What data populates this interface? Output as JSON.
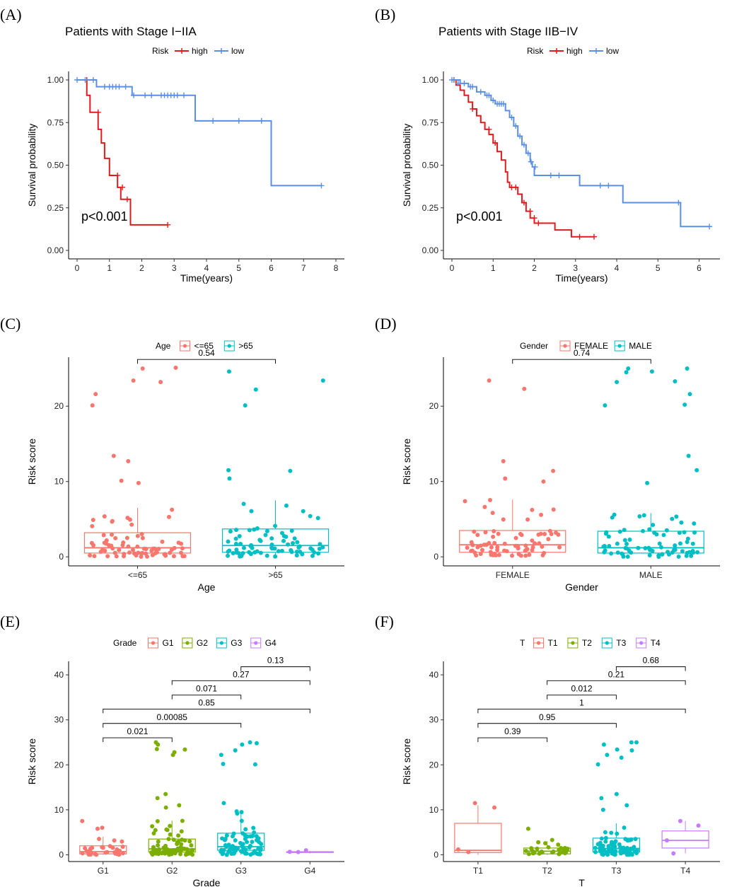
{
  "chart_data": [
    {
      "id": "A",
      "type": "line",
      "subtype": "kaplan-meier",
      "panel_label": "(A)",
      "title": "Patients with Stage I−IIA",
      "legend_title": "Risk",
      "xlabel": "Time(years)",
      "ylabel": "Survival probability",
      "xlim": [
        0,
        8
      ],
      "ylim": [
        0,
        1
      ],
      "xticks": [
        "0",
        "1",
        "2",
        "3",
        "4",
        "5",
        "6",
        "7",
        "8"
      ],
      "yticks": [
        "0.00",
        "0.25",
        "0.50",
        "0.75",
        "1.00"
      ],
      "annotation": "p<0.001",
      "series": [
        {
          "name": "high",
          "color": "#e31a1c",
          "steps": [
            [
              0,
              1.0
            ],
            [
              0.3,
              0.91
            ],
            [
              0.4,
              0.81
            ],
            [
              0.65,
              0.71
            ],
            [
              0.75,
              0.63
            ],
            [
              0.85,
              0.54
            ],
            [
              1.0,
              0.44
            ],
            [
              1.25,
              0.37
            ],
            [
              1.35,
              0.3
            ],
            [
              1.65,
              0.15
            ],
            [
              2.8,
              0.15
            ]
          ],
          "censor": [
            [
              0.3,
              1.0
            ],
            [
              0.65,
              0.81
            ],
            [
              1.25,
              0.44
            ],
            [
              1.4,
              0.37
            ],
            [
              1.55,
              0.3
            ],
            [
              2.8,
              0.15
            ]
          ]
        },
        {
          "name": "low",
          "color": "#5b8fe6",
          "steps": [
            [
              0,
              1.0
            ],
            [
              0.6,
              0.96
            ],
            [
              1.7,
              0.91
            ],
            [
              3.65,
              0.76
            ],
            [
              6.0,
              0.38
            ],
            [
              7.55,
              0.38
            ]
          ],
          "censor": [
            [
              0.0,
              1.0
            ],
            [
              0.25,
              1.0
            ],
            [
              0.5,
              1.0
            ],
            [
              0.85,
              0.96
            ],
            [
              1.0,
              0.96
            ],
            [
              1.1,
              0.96
            ],
            [
              1.2,
              0.96
            ],
            [
              1.3,
              0.96
            ],
            [
              1.5,
              0.96
            ],
            [
              1.75,
              0.91
            ],
            [
              2.1,
              0.91
            ],
            [
              2.3,
              0.91
            ],
            [
              2.6,
              0.91
            ],
            [
              2.7,
              0.91
            ],
            [
              2.8,
              0.91
            ],
            [
              2.9,
              0.91
            ],
            [
              3.0,
              0.91
            ],
            [
              3.1,
              0.91
            ],
            [
              3.3,
              0.91
            ],
            [
              4.2,
              0.76
            ],
            [
              5.0,
              0.76
            ],
            [
              5.7,
              0.76
            ],
            [
              7.55,
              0.38
            ]
          ]
        }
      ]
    },
    {
      "id": "B",
      "type": "line",
      "subtype": "kaplan-meier",
      "panel_label": "(B)",
      "title": "Patients with Stage IIB−IV",
      "legend_title": "Risk",
      "xlabel": "Time(years)",
      "ylabel": "Survival probability",
      "xlim": [
        0,
        6.3
      ],
      "ylim": [
        0,
        1
      ],
      "xticks": [
        "0",
        "1",
        "2",
        "3",
        "4",
        "5",
        "6"
      ],
      "yticks": [
        "0.00",
        "0.25",
        "0.50",
        "0.75",
        "1.00"
      ],
      "annotation": "p<0.001",
      "series": [
        {
          "name": "high",
          "color": "#e31a1c",
          "steps": [
            [
              0,
              1.0
            ],
            [
              0.1,
              0.97
            ],
            [
              0.2,
              0.94
            ],
            [
              0.3,
              0.91
            ],
            [
              0.4,
              0.87
            ],
            [
              0.5,
              0.83
            ],
            [
              0.6,
              0.79
            ],
            [
              0.7,
              0.75
            ],
            [
              0.8,
              0.71
            ],
            [
              0.9,
              0.68
            ],
            [
              1.0,
              0.63
            ],
            [
              1.1,
              0.58
            ],
            [
              1.2,
              0.53
            ],
            [
              1.3,
              0.46
            ],
            [
              1.35,
              0.4
            ],
            [
              1.4,
              0.37
            ],
            [
              1.6,
              0.33
            ],
            [
              1.7,
              0.28
            ],
            [
              1.8,
              0.23
            ],
            [
              1.9,
              0.19
            ],
            [
              2.0,
              0.16
            ],
            [
              2.5,
              0.12
            ],
            [
              2.9,
              0.08
            ],
            [
              3.45,
              0.08
            ]
          ],
          "censor": [
            [
              0.05,
              1.0
            ],
            [
              0.5,
              0.83
            ],
            [
              0.9,
              0.71
            ],
            [
              1.05,
              0.63
            ],
            [
              1.45,
              0.37
            ],
            [
              1.55,
              0.37
            ],
            [
              1.75,
              0.28
            ],
            [
              1.9,
              0.23
            ],
            [
              2.0,
              0.19
            ],
            [
              2.1,
              0.16
            ],
            [
              3.1,
              0.08
            ],
            [
              3.45,
              0.08
            ]
          ]
        },
        {
          "name": "low",
          "color": "#5b8fe6",
          "steps": [
            [
              0,
              1.0
            ],
            [
              0.2,
              0.98
            ],
            [
              0.4,
              0.96
            ],
            [
              0.6,
              0.93
            ],
            [
              0.8,
              0.91
            ],
            [
              0.95,
              0.88
            ],
            [
              1.05,
              0.86
            ],
            [
              1.3,
              0.82
            ],
            [
              1.4,
              0.78
            ],
            [
              1.5,
              0.73
            ],
            [
              1.6,
              0.67
            ],
            [
              1.7,
              0.62
            ],
            [
              1.8,
              0.57
            ],
            [
              1.9,
              0.52
            ],
            [
              1.95,
              0.49
            ],
            [
              2.0,
              0.44
            ],
            [
              3.1,
              0.38
            ],
            [
              4.15,
              0.28
            ],
            [
              5.55,
              0.14
            ],
            [
              6.25,
              0.14
            ]
          ],
          "censor": [
            [
              0,
              1.0
            ],
            [
              0.05,
              1.0
            ],
            [
              0.15,
              0.98
            ],
            [
              0.3,
              0.98
            ],
            [
              0.45,
              0.96
            ],
            [
              0.5,
              0.96
            ],
            [
              0.7,
              0.93
            ],
            [
              0.85,
              0.91
            ],
            [
              0.9,
              0.91
            ],
            [
              1.0,
              0.88
            ],
            [
              1.1,
              0.86
            ],
            [
              1.15,
              0.86
            ],
            [
              1.2,
              0.86
            ],
            [
              1.25,
              0.86
            ],
            [
              1.45,
              0.78
            ],
            [
              1.55,
              0.73
            ],
            [
              1.65,
              0.67
            ],
            [
              1.75,
              0.62
            ],
            [
              1.85,
              0.57
            ],
            [
              1.92,
              0.52
            ],
            [
              2.02,
              0.49
            ],
            [
              2.4,
              0.44
            ],
            [
              2.6,
              0.44
            ],
            [
              3.6,
              0.38
            ],
            [
              3.8,
              0.38
            ],
            [
              5.5,
              0.28
            ],
            [
              6.25,
              0.14
            ]
          ]
        }
      ]
    },
    {
      "id": "C",
      "type": "box",
      "panel_label": "(C)",
      "legend_title": "Age",
      "xlabel": "Age",
      "ylabel": "Risk score",
      "ylim": [
        -1.2,
        26.5
      ],
      "yticks": [
        "0",
        "10",
        "20"
      ],
      "groups": [
        {
          "name": "<=65",
          "color": "#f8766d",
          "q1": 0.5,
          "median": 1.2,
          "q3": 3.2,
          "whisk_lo": 0.0,
          "whisk_hi": 6.5,
          "outliers": [
            13.4,
            12.7,
            9.8,
            10.1,
            20.1,
            21.6,
            23.2,
            23.4,
            25.0,
            25.1
          ]
        },
        {
          "name": ">65",
          "color": "#00bfc4",
          "q1": 0.6,
          "median": 1.5,
          "q3": 3.7,
          "whisk_lo": 0.0,
          "whisk_hi": 7.5,
          "outliers": [
            11.4,
            11.5,
            10.4,
            20.1,
            22.2,
            23.4,
            24.6
          ]
        }
      ],
      "comparisons": [
        {
          "from": 0,
          "to": 1,
          "label": "0.54",
          "y": 26.2
        }
      ]
    },
    {
      "id": "D",
      "type": "box",
      "panel_label": "(D)",
      "legend_title": "Gender",
      "xlabel": "Gender",
      "ylabel": "Risk score",
      "ylim": [
        -1.2,
        26.5
      ],
      "yticks": [
        "0",
        "10",
        "20"
      ],
      "groups": [
        {
          "name": "FEMALE",
          "color": "#f8766d",
          "q1": 0.6,
          "median": 1.6,
          "q3": 3.5,
          "whisk_lo": 0.0,
          "whisk_hi": 7.6,
          "outliers": [
            11.4,
            12.7,
            10.0,
            10.4,
            22.3,
            23.4
          ]
        },
        {
          "name": "MALE",
          "color": "#00bfc4",
          "q1": 0.5,
          "median": 1.2,
          "q3": 3.4,
          "whisk_lo": 0.0,
          "whisk_hi": 5.8,
          "outliers": [
            13.4,
            11.5,
            9.8,
            20.1,
            20.2,
            21.6,
            23.3,
            23.2,
            24.5,
            24.6,
            25.0,
            25.0
          ]
        }
      ],
      "comparisons": [
        {
          "from": 0,
          "to": 1,
          "label": "0.74",
          "y": 26.2
        }
      ]
    },
    {
      "id": "E",
      "type": "box",
      "panel_label": "(E)",
      "legend_title": "Grade",
      "xlabel": "Grade",
      "ylabel": "Risk score",
      "ylim": [
        -1.5,
        43
      ],
      "yticks": [
        "0",
        "10",
        "20",
        "30",
        "40"
      ],
      "groups": [
        {
          "name": "G1",
          "color": "#f8766d",
          "q1": 0.2,
          "median": 0.7,
          "q3": 2.0,
          "whisk_lo": 0.0,
          "whisk_hi": 4.0,
          "outliers": [
            7.5,
            6.0,
            5.8
          ]
        },
        {
          "name": "G2",
          "color": "#7cae00",
          "q1": 0.6,
          "median": 1.3,
          "q3": 3.5,
          "whisk_lo": 0.0,
          "whisk_hi": 7.6,
          "outliers": [
            13.5,
            12.6,
            11.0,
            10.5,
            22.2,
            22.8,
            23.4,
            23.5,
            24.5,
            25.0
          ]
        },
        {
          "name": "G3",
          "color": "#00bfc4",
          "q1": 1.0,
          "median": 1.8,
          "q3": 4.8,
          "whisk_lo": 0.0,
          "whisk_hi": 9.8,
          "outliers": [
            11.5,
            20.2,
            20.1,
            22.2,
            23.2,
            24.5,
            25.0,
            24.8
          ]
        },
        {
          "name": "G4",
          "color": "#c77cff",
          "q1": 0.5,
          "median": 0.6,
          "q3": 0.7,
          "whisk_lo": 0.3,
          "whisk_hi": 0.9,
          "outliers": [
            1.0
          ]
        }
      ],
      "comparisons": [
        {
          "from": 0,
          "to": 1,
          "label": "0.021",
          "y": 26.0
        },
        {
          "from": 0,
          "to": 2,
          "label": "0.00085",
          "y": 29.2
        },
        {
          "from": 0,
          "to": 3,
          "label": "0.85",
          "y": 32.4
        },
        {
          "from": 1,
          "to": 2,
          "label": "0.071",
          "y": 35.5
        },
        {
          "from": 1,
          "to": 3,
          "label": "0.27",
          "y": 38.7
        },
        {
          "from": 2,
          "to": 3,
          "label": "0.13",
          "y": 41.8
        }
      ]
    },
    {
      "id": "F",
      "type": "box",
      "panel_label": "(F)",
      "legend_title": "T",
      "xlabel": "T",
      "ylabel": "Risk score",
      "ylim": [
        -1.5,
        43
      ],
      "yticks": [
        "0",
        "10",
        "20",
        "30",
        "40"
      ],
      "groups": [
        {
          "name": "T1",
          "color": "#f8766d",
          "q1": 0.5,
          "median": 1.0,
          "q3": 7.0,
          "whisk_lo": 0.0,
          "whisk_hi": 11.0,
          "outliers": [
            11.5,
            10.5,
            1.2,
            0.6
          ]
        },
        {
          "name": "T2",
          "color": "#7cae00",
          "q1": 0.2,
          "median": 0.8,
          "q3": 1.5,
          "whisk_lo": 0.0,
          "whisk_hi": 3.0,
          "outliers": [
            5.8,
            3.3
          ]
        },
        {
          "name": "T3",
          "color": "#00bfc4",
          "q1": 0.6,
          "median": 1.4,
          "q3": 3.7,
          "whisk_lo": 0.0,
          "whisk_hi": 7.0,
          "outliers": [
            13.5,
            12.6,
            11.0,
            10.0,
            20.1,
            21.6,
            22.2,
            23.2,
            23.4,
            24.5,
            25.0,
            25.0
          ]
        },
        {
          "name": "T4",
          "color": "#c77cff",
          "q1": 1.5,
          "median": 3.2,
          "q3": 5.3,
          "whisk_lo": 0.3,
          "whisk_hi": 7.5,
          "outliers": [
            7.5,
            6.5,
            3.2,
            0.3
          ]
        }
      ],
      "comparisons": [
        {
          "from": 0,
          "to": 1,
          "label": "0.39",
          "y": 26.0
        },
        {
          "from": 0,
          "to": 2,
          "label": "0.95",
          "y": 29.2
        },
        {
          "from": 0,
          "to": 3,
          "label": "1",
          "y": 32.4
        },
        {
          "from": 1,
          "to": 2,
          "label": "0.012",
          "y": 35.5
        },
        {
          "from": 1,
          "to": 3,
          "label": "0.21",
          "y": 38.7
        },
        {
          "from": 2,
          "to": 3,
          "label": "0.68",
          "y": 41.8
        }
      ]
    }
  ]
}
